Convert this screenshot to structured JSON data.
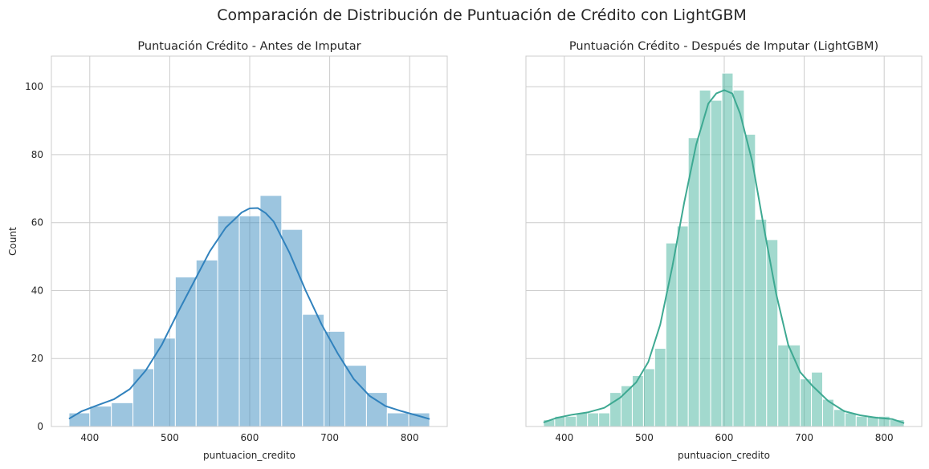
{
  "figure": {
    "suptitle": "Comparación de Distribución de Puntuación de Crédito con LightGBM"
  },
  "chart_data": [
    {
      "type": "bar",
      "subtype": "histogram",
      "title": "Puntuación Crédito - Antes de Imputar",
      "xlabel": "puntuacion_credito",
      "ylabel": "Count",
      "xlim": [
        352,
        847
      ],
      "ylim": [
        0,
        109
      ],
      "xticks": [
        400,
        500,
        600,
        700,
        800
      ],
      "yticks": [
        0,
        20,
        40,
        60,
        80,
        100
      ],
      "grid": true,
      "bar_color": "#3a8bbf",
      "bar_opacity": 0.5,
      "kde_color": "#3182bd",
      "bins": [
        {
          "x0": 374,
          "x1": 400,
          "count": 4
        },
        {
          "x0": 400,
          "x1": 427,
          "count": 6
        },
        {
          "x0": 427,
          "x1": 454,
          "count": 7
        },
        {
          "x0": 454,
          "x1": 480,
          "count": 17
        },
        {
          "x0": 480,
          "x1": 507,
          "count": 26
        },
        {
          "x0": 507,
          "x1": 533,
          "count": 44
        },
        {
          "x0": 533,
          "x1": 560,
          "count": 49
        },
        {
          "x0": 560,
          "x1": 587,
          "count": 62
        },
        {
          "x0": 587,
          "x1": 613,
          "count": 62
        },
        {
          "x0": 613,
          "x1": 640,
          "count": 68
        },
        {
          "x0": 640,
          "x1": 666,
          "count": 58
        },
        {
          "x0": 666,
          "x1": 693,
          "count": 33
        },
        {
          "x0": 693,
          "x1": 719,
          "count": 28
        },
        {
          "x0": 719,
          "x1": 746,
          "count": 18
        },
        {
          "x0": 746,
          "x1": 772,
          "count": 10
        },
        {
          "x0": 772,
          "x1": 799,
          "count": 4
        },
        {
          "x0": 799,
          "x1": 825,
          "count": 4
        }
      ],
      "kde": {
        "x": [
          374,
          390,
          410,
          430,
          450,
          470,
          490,
          510,
          530,
          550,
          570,
          590,
          600,
          610,
          620,
          630,
          650,
          670,
          690,
          710,
          730,
          750,
          770,
          790,
          810,
          825
        ],
        "y": [
          2.3,
          4.5,
          6.3,
          8,
          11,
          16.5,
          24,
          33.5,
          42.5,
          51.5,
          58.5,
          63,
          64.2,
          64.3,
          62.8,
          60.3,
          51,
          40,
          30,
          21.5,
          14,
          9,
          6,
          4.5,
          3.2,
          2.2
        ]
      }
    },
    {
      "type": "bar",
      "subtype": "histogram",
      "title": "Puntuación Crédito - Después de Imputar (LightGBM)",
      "xlabel": "puntuacion_credito",
      "ylabel": "",
      "xlim": [
        352,
        847
      ],
      "ylim": [
        0,
        109
      ],
      "xticks": [
        400,
        500,
        600,
        700,
        800
      ],
      "yticks": [
        0,
        20,
        40,
        60,
        80,
        100
      ],
      "grid": true,
      "bar_color": "#45b39d",
      "bar_opacity": 0.5,
      "kde_color": "#3ea992",
      "bins": [
        {
          "x0": 374,
          "x1": 388,
          "count": 2
        },
        {
          "x0": 388,
          "x1": 401,
          "count": 3
        },
        {
          "x0": 401,
          "x1": 415,
          "count": 3
        },
        {
          "x0": 415,
          "x1": 429,
          "count": 4
        },
        {
          "x0": 429,
          "x1": 443,
          "count": 4
        },
        {
          "x0": 443,
          "x1": 457,
          "count": 4
        },
        {
          "x0": 457,
          "x1": 471,
          "count": 10
        },
        {
          "x0": 471,
          "x1": 485,
          "count": 12
        },
        {
          "x0": 485,
          "x1": 499,
          "count": 15
        },
        {
          "x0": 499,
          "x1": 513,
          "count": 17
        },
        {
          "x0": 513,
          "x1": 527,
          "count": 23
        },
        {
          "x0": 527,
          "x1": 541,
          "count": 54
        },
        {
          "x0": 541,
          "x1": 555,
          "count": 59
        },
        {
          "x0": 555,
          "x1": 569,
          "count": 85
        },
        {
          "x0": 569,
          "x1": 583,
          "count": 99
        },
        {
          "x0": 583,
          "x1": 597,
          "count": 96
        },
        {
          "x0": 597,
          "x1": 611,
          "count": 104
        },
        {
          "x0": 611,
          "x1": 625,
          "count": 99
        },
        {
          "x0": 625,
          "x1": 639,
          "count": 86
        },
        {
          "x0": 639,
          "x1": 653,
          "count": 61
        },
        {
          "x0": 653,
          "x1": 667,
          "count": 55
        },
        {
          "x0": 667,
          "x1": 681,
          "count": 24
        },
        {
          "x0": 681,
          "x1": 695,
          "count": 24
        },
        {
          "x0": 695,
          "x1": 709,
          "count": 14
        },
        {
          "x0": 709,
          "x1": 723,
          "count": 16
        },
        {
          "x0": 723,
          "x1": 737,
          "count": 8
        },
        {
          "x0": 737,
          "x1": 751,
          "count": 5
        },
        {
          "x0": 751,
          "x1": 765,
          "count": 4
        },
        {
          "x0": 765,
          "x1": 779,
          "count": 3
        },
        {
          "x0": 779,
          "x1": 793,
          "count": 3
        },
        {
          "x0": 793,
          "x1": 807,
          "count": 3
        },
        {
          "x0": 807,
          "x1": 825,
          "count": 2
        }
      ],
      "kde": {
        "x": [
          374,
          390,
          410,
          430,
          450,
          470,
          490,
          505,
          520,
          535,
          550,
          565,
          580,
          590,
          600,
          610,
          620,
          635,
          650,
          665,
          680,
          695,
          710,
          730,
          750,
          770,
          790,
          810,
          825
        ],
        "y": [
          1.2,
          2.5,
          3.5,
          4.2,
          5.5,
          8.5,
          13,
          19,
          30,
          47,
          66,
          83,
          95,
          98,
          99,
          98,
          92,
          78,
          58,
          39,
          24,
          16,
          12,
          7.5,
          4.5,
          3.3,
          2.6,
          2.2,
          1.0
        ]
      }
    }
  ]
}
